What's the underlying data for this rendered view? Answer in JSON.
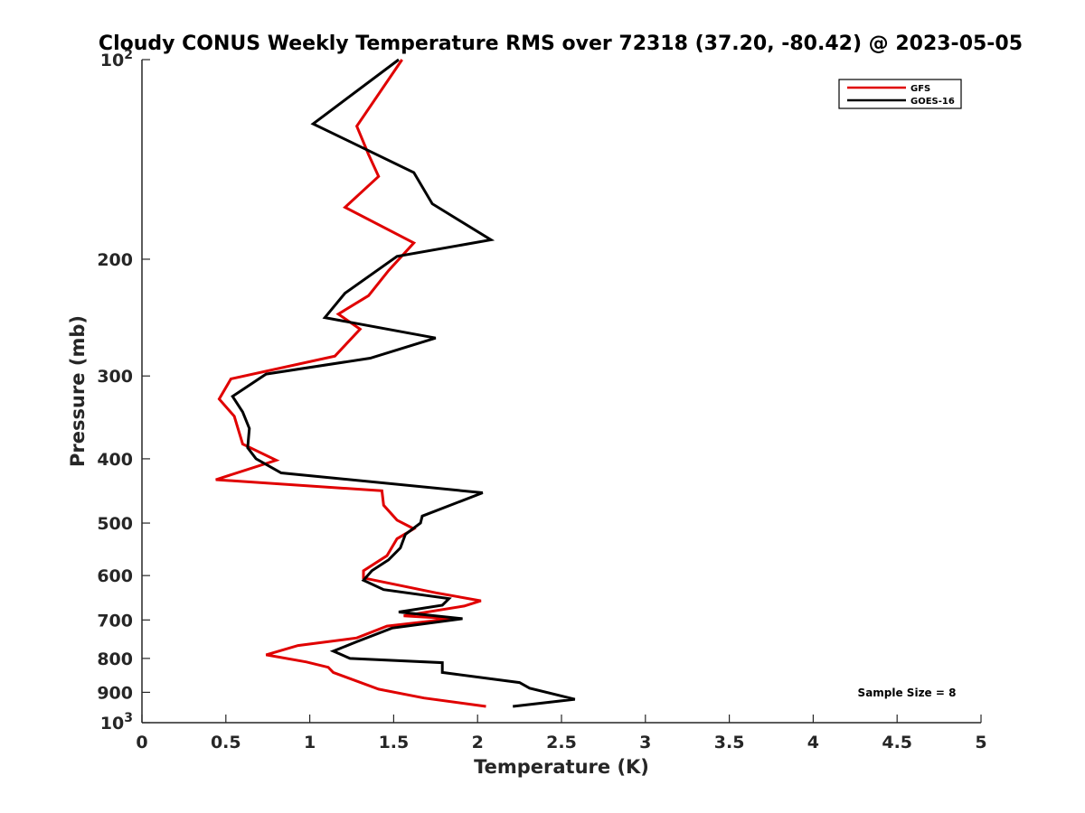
{
  "chart_data": {
    "type": "line",
    "title": "Cloudy CONUS Weekly Temperature RMS over 72318 (37.20, -80.42) @ 2023-05-05",
    "xlabel": "Temperature (K)",
    "ylabel": "Pressure (mb)",
    "xlim": [
      0,
      5
    ],
    "ylim": [
      100,
      1000
    ],
    "y_scale": "log",
    "y_reversed": true,
    "grid": false,
    "legend_position": "top-right",
    "x_ticks": [
      0,
      0.5,
      1,
      1.5,
      2,
      2.5,
      3,
      3.5,
      4,
      4.5,
      5
    ],
    "x_tick_labels": [
      "0",
      "0.5",
      "1",
      "1.5",
      "2",
      "2.5",
      "3",
      "3.5",
      "4",
      "4.5",
      "5"
    ],
    "y_ticks": [
      {
        "value": 100,
        "label": "10",
        "sup": "2"
      },
      {
        "value": 200,
        "label": "200",
        "sup": ""
      },
      {
        "value": 300,
        "label": "300",
        "sup": ""
      },
      {
        "value": 400,
        "label": "400",
        "sup": ""
      },
      {
        "value": 500,
        "label": "500",
        "sup": ""
      },
      {
        "value": 600,
        "label": "600",
        "sup": ""
      },
      {
        "value": 700,
        "label": "700",
        "sup": ""
      },
      {
        "value": 800,
        "label": "800",
        "sup": ""
      },
      {
        "value": 900,
        "label": "900",
        "sup": ""
      },
      {
        "value": 1000,
        "label": "10",
        "sup": "3"
      }
    ],
    "annotation": "Sample Size = 8",
    "series": [
      {
        "name": "GFS",
        "color": "#e00000",
        "points": [
          [
            1.55,
            100
          ],
          [
            1.28,
            126
          ],
          [
            1.35,
            139
          ],
          [
            1.41,
            150
          ],
          [
            1.21,
            167
          ],
          [
            1.62,
            189
          ],
          [
            1.47,
            208
          ],
          [
            1.35,
            227
          ],
          [
            1.17,
            242
          ],
          [
            1.3,
            255
          ],
          [
            1.15,
            280
          ],
          [
            0.53,
            303
          ],
          [
            0.46,
            325
          ],
          [
            0.55,
            345
          ],
          [
            0.6,
            380
          ],
          [
            0.8,
            402
          ],
          [
            0.44,
            430
          ],
          [
            1.43,
            447
          ],
          [
            1.44,
            470
          ],
          [
            1.52,
            495
          ],
          [
            1.62,
            510
          ],
          [
            1.52,
            528
          ],
          [
            1.46,
            560
          ],
          [
            1.32,
            590
          ],
          [
            1.32,
            605
          ],
          [
            1.75,
            637
          ],
          [
            2.02,
            655
          ],
          [
            1.92,
            667
          ],
          [
            1.56,
            690
          ],
          [
            1.85,
            697
          ],
          [
            1.46,
            715
          ],
          [
            1.28,
            745
          ],
          [
            0.93,
            765
          ],
          [
            0.74,
            790
          ],
          [
            0.98,
            810
          ],
          [
            1.11,
            825
          ],
          [
            1.14,
            840
          ],
          [
            1.41,
            890
          ],
          [
            1.68,
            918
          ],
          [
            2.05,
            945
          ]
        ]
      },
      {
        "name": "GOES-16",
        "color": "#000000",
        "points": [
          [
            1.53,
            100
          ],
          [
            1.02,
            125
          ],
          [
            1.62,
            148
          ],
          [
            1.73,
            165
          ],
          [
            2.08,
            187
          ],
          [
            1.52,
            198
          ],
          [
            1.21,
            225
          ],
          [
            1.09,
            245
          ],
          [
            1.75,
            263
          ],
          [
            1.36,
            282
          ],
          [
            0.74,
            298
          ],
          [
            0.54,
            322
          ],
          [
            0.6,
            340
          ],
          [
            0.64,
            360
          ],
          [
            0.63,
            385
          ],
          [
            0.68,
            400
          ],
          [
            0.83,
            420
          ],
          [
            2.03,
            450
          ],
          [
            1.67,
            488
          ],
          [
            1.66,
            500
          ],
          [
            1.57,
            520
          ],
          [
            1.54,
            545
          ],
          [
            1.47,
            568
          ],
          [
            1.37,
            590
          ],
          [
            1.32,
            610
          ],
          [
            1.44,
            630
          ],
          [
            1.83,
            650
          ],
          [
            1.79,
            665
          ],
          [
            1.53,
            681
          ],
          [
            1.91,
            697
          ],
          [
            1.49,
            720
          ],
          [
            1.28,
            755
          ],
          [
            1.14,
            780
          ],
          [
            1.24,
            800
          ],
          [
            1.79,
            812
          ],
          [
            1.79,
            840
          ],
          [
            2.25,
            870
          ],
          [
            2.31,
            887
          ],
          [
            2.58,
            922
          ],
          [
            2.21,
            945
          ]
        ]
      }
    ]
  }
}
